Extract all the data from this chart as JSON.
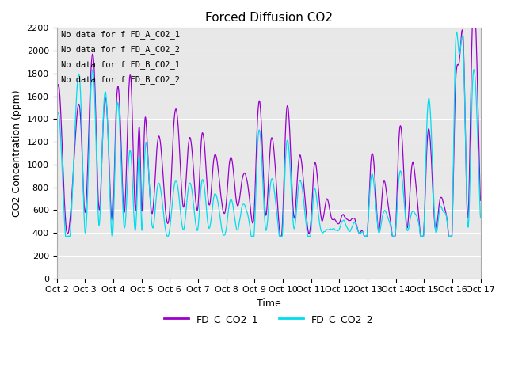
{
  "title": "Forced Diffusion CO2",
  "xlabel": "Time",
  "ylabel": "CO2 Concentration (ppm)",
  "ylim": [
    0,
    2200
  ],
  "line1_color": "#9900CC",
  "line2_color": "#00DDEE",
  "line1_label": "FD_C_CO2_1",
  "line2_label": "FD_C_CO2_2",
  "bg_color": "#E8E8E8",
  "fig_bg_color": "#FFFFFF",
  "no_data_texts": [
    "No data for f FD_A_CO2_1",
    "No data for f FD_A_CO2_2",
    "No data for f FD_B_CO2_1",
    "No data for f FD_B_CO2_2"
  ],
  "xtick_labels": [
    "Oct 2",
    "Oct 3",
    "Oct 4",
    "Oct 5",
    "Oct 6",
    "Oct 7",
    "Oct 8",
    "Oct 9",
    "Oct 10",
    "Oct 11",
    "Oct 12",
    "Oct 13",
    "Oct 14",
    "Oct 15",
    "Oct 16",
    "Oct 17"
  ],
  "grid_color": "#FFFFFF",
  "title_fontsize": 11,
  "axis_fontsize": 9,
  "tick_fontsize": 8,
  "legend_fontsize": 9
}
